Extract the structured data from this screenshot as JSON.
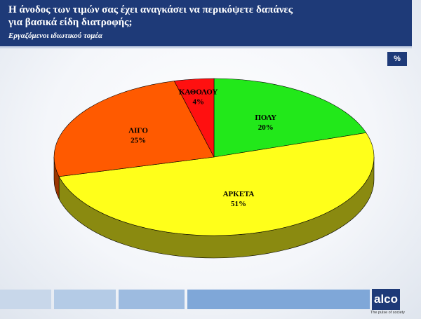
{
  "header": {
    "title_line1": "Η άνοδος των τιμών σας  έχει αναγκάσει να περικόψετε δαπάνες",
    "title_line2": "για  βασικά είδη διατροφής;",
    "subtitle": "Εργαζόμενοι ιδιωτικού τομέα",
    "unit_badge": "%"
  },
  "branding": {
    "logo": "alco",
    "tagline": "The pulse of society"
  },
  "colors": {
    "title_bar": "#1e3a78",
    "poly": "#22e81a",
    "arketa": "#ffff1a",
    "ligo": "#ff5a00",
    "katholou": "#ff1010"
  },
  "chart_data": {
    "type": "pie",
    "title": "Η άνοδος των τιμών σας  έχει αναγκάσει να περικόψετε δαπάνες για  βασικά είδη διατροφής;",
    "subtitle": "Εργαζόμενοι ιδιωτικού τομέα",
    "unit": "%",
    "start": "12 o'clock, clockwise",
    "three_d": true,
    "slices": [
      {
        "label": "ΠΟΛΥ",
        "value": 20,
        "value_label": "20%",
        "color": "#22e81a",
        "shade": "#138c0d"
      },
      {
        "label": "ΑΡΚΕΤΑ",
        "value": 51,
        "value_label": "51%",
        "color": "#ffff1a",
        "shade": "#8a8a10"
      },
      {
        "label": "ΛΙΓΟ",
        "value": 25,
        "value_label": "25%",
        "color": "#ff5a00",
        "shade": "#9a3600"
      },
      {
        "label": "ΚΑΘΟΛΟΥ",
        "value": 4,
        "value_label": "4%",
        "color": "#ff1010",
        "shade": "#9a0a0a"
      }
    ]
  }
}
